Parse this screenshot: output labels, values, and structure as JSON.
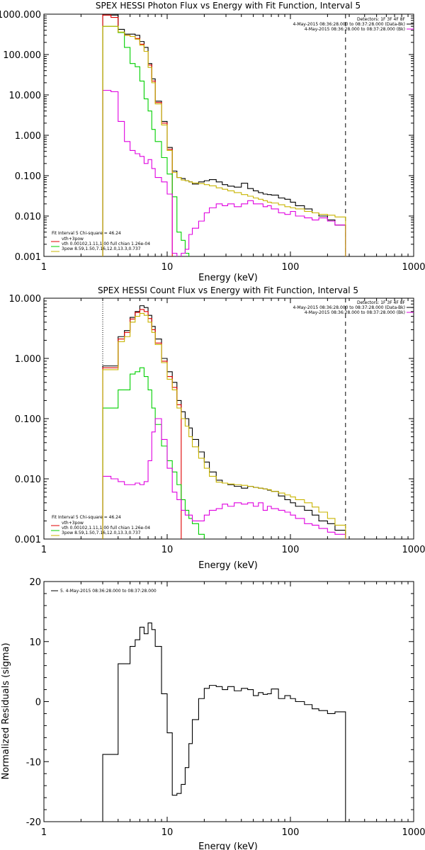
{
  "colors": {
    "data": "#000000",
    "bk": "#e00000",
    "vth": "#00d000",
    "powerlaw": "#e000e0",
    "total": "#c8b400",
    "marker": "#d08000"
  },
  "chart_data": [
    {
      "type": "line",
      "title": "SPEX HESSI Photon Flux vs Energy with Fit Function, Interval 5",
      "xlabel": "Energy (keV)",
      "ylabel": "",
      "xscale": "log",
      "yscale": "log",
      "xlim": [
        1,
        1000
      ],
      "ylim": [
        0.001,
        1000
      ],
      "xticks": [
        "1",
        "10",
        "100",
        "1000"
      ],
      "yticks": [
        "0.001",
        "0.010",
        "0.100",
        "1.000",
        "10.000",
        "100.000",
        "1000.000"
      ],
      "legend": {
        "position": "bottom-left",
        "title": "Fit Interval 5   Chi-square = 46.24",
        "entries": [
          "vth+3pow",
          "vth 0.00102,1.11,1.00  full chian 1.26e-04",
          "3pow 8.59,1.50,7.16,12.0,13.3,0.737"
        ]
      },
      "header": {
        "position": "top-right",
        "lines": [
          "Detectors: 1F 3F 4F 8F",
          "4-May-2015 08:36:28.000 to 08:37:28.000 (Data-Bk)",
          "4-May-2015 08:36:28.000 to 08:37:28.000 (Bk)"
        ]
      },
      "markers": [
        {
          "x": 3,
          "style": "dotted"
        },
        {
          "x": 280,
          "style": "dashed"
        }
      ],
      "edges": [
        3,
        3.5,
        4,
        4.5,
        5,
        5.5,
        6,
        6.5,
        7,
        7.5,
        8,
        9,
        10,
        11,
        12,
        13,
        14,
        15,
        16,
        18,
        20,
        22,
        25,
        28,
        31,
        35,
        40,
        45,
        50,
        55,
        60,
        65,
        70,
        80,
        90,
        100,
        110,
        130,
        150,
        170,
        200,
        230,
        280
      ],
      "series": [
        {
          "name": "Data-Bk",
          "color": "#000000",
          "values": [
            950,
            950,
            420,
            320,
            320,
            300,
            210,
            150,
            60,
            25,
            7,
            2.2,
            0.5,
            0.13,
            0.09,
            0.085,
            0.075,
            0.07,
            0.062,
            0.07,
            0.075,
            0.08,
            0.07,
            0.06,
            0.055,
            0.052,
            0.065,
            0.048,
            0.042,
            0.038,
            0.035,
            0.034,
            0.033,
            0.028,
            0.026,
            0.022,
            0.018,
            0.015,
            0.012,
            0.01,
            0.008,
            0.006
          ]
        },
        {
          "name": "Bk",
          "color": "#e00000",
          "values": [
            950,
            830,
            350,
            300,
            280,
            250,
            180,
            120,
            55,
            22,
            6.5,
            2.0,
            0.45
          ]
        },
        {
          "name": "vth",
          "color": "#00d000",
          "values": [
            500,
            500,
            350,
            150,
            60,
            50,
            22,
            8,
            4,
            1.4,
            0.7,
            0.28,
            0.11,
            0.03,
            0.004,
            0.0025,
            0.0012,
            0.0005
          ]
        },
        {
          "name": "3pow",
          "color": "#e000e0",
          "values": [
            13,
            12,
            2.2,
            0.7,
            0.42,
            0.35,
            0.3,
            0.2,
            0.25,
            0.15,
            0.09,
            0.07,
            0.035,
            0.0012,
            0.0009,
            0.0012,
            0.0015,
            0.0035,
            0.005,
            0.0075,
            0.012,
            0.016,
            0.02,
            0.018,
            0.02,
            0.017,
            0.02,
            0.024,
            0.02,
            0.02,
            0.017,
            0.018,
            0.015,
            0.012,
            0.011,
            0.013,
            0.01,
            0.009,
            0.008,
            0.009,
            0.0075,
            0.006
          ]
        },
        {
          "name": "vth+3pow",
          "color": "#c8b400",
          "values": [
            500,
            500,
            360,
            300,
            280,
            240,
            170,
            120,
            48,
            20,
            6,
            1.8,
            0.42,
            0.12,
            0.09,
            0.078,
            0.075,
            0.07,
            0.066,
            0.064,
            0.06,
            0.056,
            0.05,
            0.046,
            0.042,
            0.038,
            0.034,
            0.031,
            0.028,
            0.026,
            0.024,
            0.022,
            0.021,
            0.019,
            0.017,
            0.016,
            0.015,
            0.013,
            0.012,
            0.011,
            0.0105,
            0.0095
          ]
        }
      ]
    },
    {
      "type": "line",
      "title": "SPEX HESSI Count Flux vs Energy with Fit Function, Interval 5",
      "xlabel": "Energy (keV)",
      "ylabel": "",
      "xscale": "log",
      "yscale": "log",
      "xlim": [
        1,
        1000
      ],
      "ylim": [
        0.001,
        10
      ],
      "xticks": [
        "1",
        "10",
        "100",
        "1000"
      ],
      "yticks": [
        "0.001",
        "0.010",
        "0.100",
        "1.000",
        "10.000"
      ],
      "legend": {
        "position": "bottom-left",
        "title": "Fit Interval 5   Chi-square = 46.24",
        "entries": [
          "vth+3pow",
          "vth 0.00102,1.11,1.00  full chian 1.26e-04",
          "3pow 8.59,1.50,7.16,12.0,13.3,0.737"
        ]
      },
      "header": {
        "position": "top-right",
        "lines": [
          "Detectors: 1F 3F 4F 8F",
          "4-May-2015 08:36:28.000 to 08:37:28.000 (Data-Bk)",
          "4-May-2015 08:36:28.000 to 08:37:28.000 (Bk)"
        ]
      },
      "markers": [
        {
          "x": 3,
          "style": "dotted"
        },
        {
          "x": 280,
          "style": "dashed"
        }
      ],
      "edges": [
        3,
        3.5,
        4,
        4.5,
        5,
        5.5,
        6,
        6.5,
        7,
        7.5,
        8,
        9,
        10,
        11,
        12,
        13,
        14,
        15,
        16,
        18,
        20,
        22,
        25,
        28,
        31,
        35,
        40,
        45,
        50,
        55,
        60,
        65,
        70,
        80,
        90,
        100,
        110,
        130,
        150,
        170,
        200,
        230,
        280
      ],
      "series": [
        {
          "name": "Data-Bk",
          "color": "#000000",
          "values": [
            0.75,
            0.75,
            2.3,
            2.9,
            4.8,
            6,
            7.5,
            7,
            5.2,
            3.4,
            2.1,
            1,
            0.6,
            0.4,
            0.2,
            0.13,
            0.1,
            0.07,
            0.045,
            0.028,
            0.019,
            0.013,
            0.0095,
            0.0085,
            0.008,
            0.0075,
            0.007,
            0.0075,
            0.0072,
            0.007,
            0.0068,
            0.0065,
            0.0062,
            0.0052,
            0.0045,
            0.004,
            0.0035,
            0.003,
            0.0025,
            0.002,
            0.0018,
            0.0014
          ]
        },
        {
          "name": "Bk",
          "color": "#e00000",
          "values": [
            0.7,
            0.7,
            2.1,
            2.7,
            4.5,
            5.8,
            6.5,
            6,
            4.6,
            3,
            1.8,
            0.9,
            0.5,
            0.33,
            0.17
          ]
        },
        {
          "name": "vth",
          "color": "#00d000",
          "values": [
            0.15,
            0.15,
            0.3,
            0.3,
            0.55,
            0.6,
            0.7,
            0.5,
            0.3,
            0.15,
            0.08,
            0.035,
            0.02,
            0.013,
            0.008,
            0.0045,
            0.003,
            0.0022,
            0.0018,
            0.0012,
            0.0009
          ]
        },
        {
          "name": "3pow",
          "color": "#e000e0",
          "values": [
            0.011,
            0.01,
            0.009,
            0.008,
            0.008,
            0.0085,
            0.008,
            0.009,
            0.02,
            0.06,
            0.1,
            0.045,
            0.015,
            0.006,
            0.0045,
            0.003,
            0.0025,
            0.0025,
            0.002,
            0.002,
            0.0025,
            0.003,
            0.0032,
            0.0038,
            0.0035,
            0.004,
            0.0038,
            0.004,
            0.0035,
            0.004,
            0.003,
            0.0035,
            0.0032,
            0.003,
            0.0028,
            0.0025,
            0.0022,
            0.0018,
            0.0017,
            0.0015,
            0.0013,
            0.0012
          ]
        },
        {
          "name": "vth+3pow",
          "color": "#c8b400",
          "values": [
            0.65,
            0.65,
            1.9,
            2.3,
            4,
            5,
            5.6,
            5.2,
            4,
            2.7,
            1.7,
            0.85,
            0.45,
            0.3,
            0.15,
            0.1,
            0.075,
            0.05,
            0.034,
            0.022,
            0.015,
            0.011,
            0.0088,
            0.0085,
            0.0082,
            0.008,
            0.0078,
            0.0075,
            0.0072,
            0.007,
            0.0068,
            0.0066,
            0.0062,
            0.0058,
            0.0054,
            0.005,
            0.0045,
            0.004,
            0.0034,
            0.0028,
            0.0022,
            0.0017
          ]
        }
      ]
    },
    {
      "type": "line",
      "title": "",
      "xlabel": "Energy (keV)",
      "ylabel": "Normalized Residuals (sigma)",
      "xscale": "log",
      "yscale": "linear",
      "xlim": [
        1,
        1000
      ],
      "ylim": [
        -20,
        20
      ],
      "xticks": [
        "1",
        "10",
        "100",
        "1000"
      ],
      "yticks": [
        "-20",
        "-10",
        "0",
        "10",
        "20"
      ],
      "legend": {
        "position": "top-left",
        "entries": [
          "5. 4-May-2015 08:36:28.000 to 08:37:28.000"
        ]
      },
      "edges": [
        3,
        3.5,
        4,
        4.5,
        5,
        5.5,
        6,
        6.5,
        7,
        7.5,
        8,
        9,
        10,
        11,
        12,
        13,
        14,
        15,
        16,
        18,
        20,
        22,
        25,
        28,
        31,
        35,
        40,
        45,
        50,
        55,
        60,
        65,
        70,
        80,
        90,
        100,
        110,
        130,
        150,
        170,
        200,
        230,
        280
      ],
      "series": [
        {
          "name": "",
          "color": "#000000",
          "values": [
            -8.8,
            -8.8,
            6.3,
            6.3,
            9.2,
            10.3,
            12.4,
            11.3,
            13.1,
            12,
            9.2,
            1.3,
            -5.2,
            -15.6,
            -15.3,
            -13.8,
            -11,
            -7,
            -3,
            0.5,
            2.2,
            2.7,
            2.5,
            2,
            2.5,
            1.8,
            2.2,
            2,
            1,
            1.5,
            1.2,
            1.3,
            2.1,
            0.5,
            1,
            0.5,
            0,
            -0.5,
            -1.2,
            -1.5,
            -2,
            -1.7
          ]
        }
      ]
    }
  ]
}
